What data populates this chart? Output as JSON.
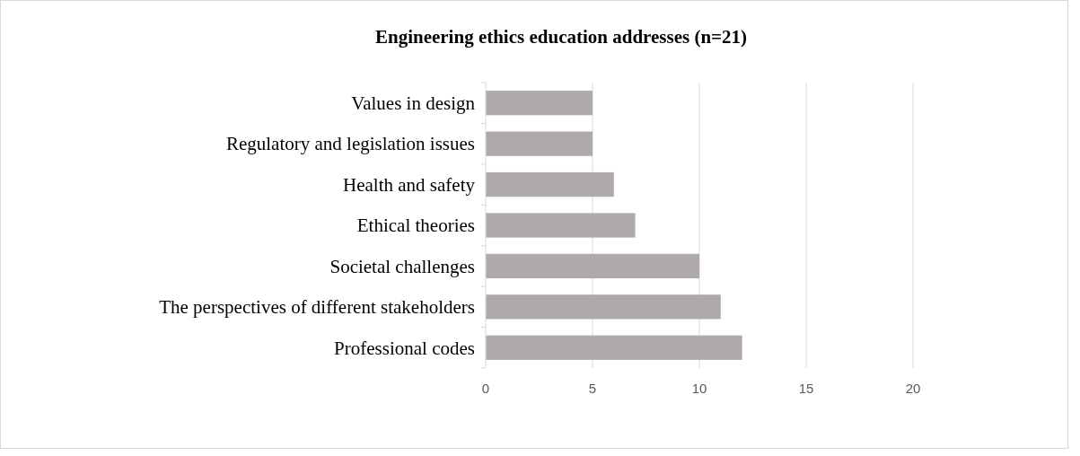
{
  "chart_data": {
    "type": "bar",
    "orientation": "horizontal",
    "title": "Engineering ethics education addresses (n=21)",
    "categories": [
      "Values in design",
      "Regulatory and legislation issues",
      "Health and safety",
      "Ethical theories",
      "Societal challenges",
      "The perspectives of different stakeholders",
      "Professional codes"
    ],
    "values": [
      5,
      5,
      6,
      7,
      10,
      11,
      12
    ],
    "color": "#aeaaaa",
    "xlim": [
      0,
      20
    ],
    "xticks": [
      0,
      5,
      10,
      15,
      20
    ],
    "grid": "x"
  }
}
